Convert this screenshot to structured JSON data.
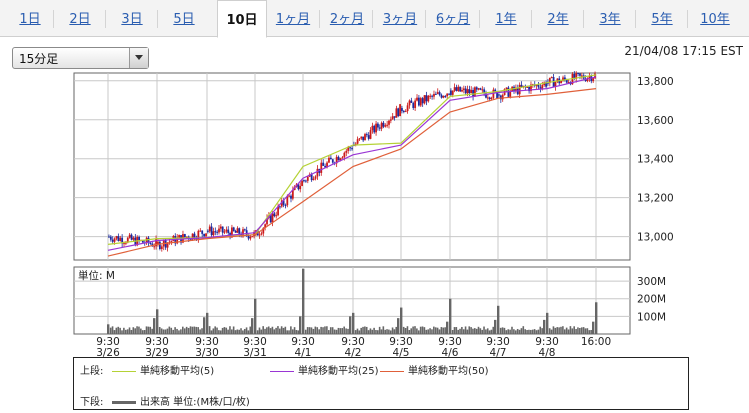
{
  "tabs": [
    {
      "label": "1日",
      "active": false
    },
    {
      "label": "2日",
      "active": false
    },
    {
      "label": "3日",
      "active": false
    },
    {
      "label": "5日",
      "active": false
    },
    {
      "label": "10日",
      "active": true
    },
    {
      "label": "1ヶ月",
      "active": false
    },
    {
      "label": "2ヶ月",
      "active": false
    },
    {
      "label": "3ヶ月",
      "active": false
    },
    {
      "label": "6ヶ月",
      "active": false
    },
    {
      "label": "1年",
      "active": false
    },
    {
      "label": "2年",
      "active": false
    },
    {
      "label": "3年",
      "active": false
    },
    {
      "label": "5年",
      "active": false
    },
    {
      "label": "10年",
      "active": false
    }
  ],
  "interval_select": {
    "value": "15分足"
  },
  "timestamp": "21/04/08 17:15 EST",
  "volume_panel_label": "単位: M",
  "legend": {
    "upper_label": "上段:",
    "lower_label": "下段:",
    "ma5": "単純移動平均(5)",
    "ma25": "単純移動平均(25)",
    "ma50": "単純移動平均(50)",
    "volume": "出来高 単位:(M株/口/枚)"
  },
  "colors": {
    "ma5": "#b5d236",
    "ma25": "#9a36d4",
    "ma50": "#e0603a",
    "up": "#cc1a1a",
    "down": "#1a2aa0",
    "volume": "#666666"
  },
  "chart_data": [
    {
      "type": "line",
      "panel": "price",
      "x_ticks": [
        "9:30\n3/26",
        "9:30\n3/29",
        "9:30\n3/30",
        "9:30\n3/31",
        "9:30\n4/1",
        "9:30\n4/2",
        "9:30\n4/5",
        "9:30\n4/6",
        "9:30\n4/7",
        "9:30\n4/8",
        "16:00"
      ],
      "y_ticks": [
        13000,
        13200,
        13400,
        13600,
        13800
      ],
      "ylim": [
        12880,
        13840
      ],
      "grid": true,
      "series": [
        {
          "name": "単純移動平均(5)",
          "values": [
            12960,
            12990,
            12995,
            13010,
            13360,
            13470,
            13480,
            13720,
            13745,
            13790,
            13830
          ]
        },
        {
          "name": "単純移動平均(25)",
          "values": [
            12930,
            12980,
            12995,
            13020,
            13300,
            13420,
            13470,
            13700,
            13740,
            13760,
            13820
          ]
        },
        {
          "name": "単純移動平均(50)",
          "values": [
            12900,
            12960,
            12990,
            13010,
            13180,
            13360,
            13450,
            13640,
            13710,
            13730,
            13760
          ]
        }
      ],
      "price_approx": [
        13000,
        12960,
        13030,
        13010,
        13290,
        13470,
        13660,
        13750,
        13730,
        13790,
        13830
      ]
    },
    {
      "type": "bar",
      "panel": "volume",
      "y_ticks_label": [
        "100M",
        "200M",
        "300M"
      ],
      "ylim": [
        0,
        380
      ],
      "daily_open_spikes": [
        55,
        140,
        120,
        200,
        370,
        120,
        150,
        200,
        160,
        120,
        180
      ],
      "daily_close_spikes": [
        90,
        95,
        90,
        100,
        100,
        90,
        70,
        80,
        80,
        70,
        200
      ]
    }
  ]
}
